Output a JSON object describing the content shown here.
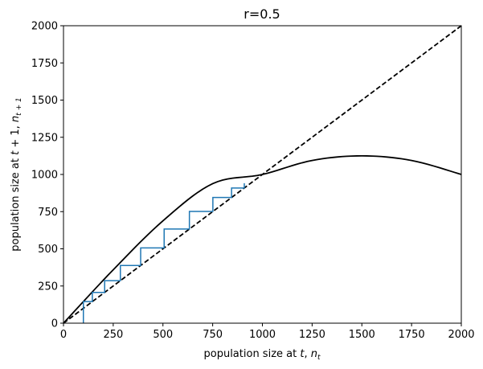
{
  "chart_data": {
    "type": "line",
    "title": "r=0.5",
    "xlabel": "population size at t, n_t",
    "ylabel": "population size at t + 1, n_{t+1}",
    "xlim": [
      0,
      2000
    ],
    "ylim": [
      0,
      2000
    ],
    "xticks": [
      "0",
      "250",
      "500",
      "750",
      "1000",
      "1250",
      "1500",
      "1750",
      "2000"
    ],
    "yticks": [
      "0",
      "250",
      "500",
      "750",
      "1000",
      "1250",
      "1500",
      "1750",
      "2000"
    ],
    "grid": false,
    "colors": {
      "curve": "#000000",
      "diagonal": "#000000",
      "cobweb": "#1f77b4"
    },
    "series": [
      {
        "style": "solid",
        "color": "#000000",
        "points": [
          [
            0,
            0
          ],
          [
            250,
            359
          ],
          [
            500,
            688
          ],
          [
            750,
            938
          ],
          [
            1000,
            1000
          ],
          [
            1250,
            1094
          ],
          [
            1500,
            1125
          ],
          [
            1750,
            1094
          ],
          [
            2000,
            1000
          ]
        ]
      },
      {
        "style": "dashed",
        "color": "#000000",
        "points": [
          [
            0,
            0
          ],
          [
            2000,
            2000
          ]
        ]
      },
      {
        "style": "step",
        "color": "#1f77b4",
        "points": [
          [
            100,
            0
          ],
          [
            100,
            145
          ],
          [
            145,
            145
          ],
          [
            145,
            207
          ],
          [
            207,
            207
          ],
          [
            207,
            286
          ],
          [
            286,
            286
          ],
          [
            286,
            388
          ],
          [
            388,
            388
          ],
          [
            388,
            506
          ],
          [
            506,
            506
          ],
          [
            506,
            633
          ],
          [
            633,
            633
          ],
          [
            633,
            751
          ],
          [
            751,
            751
          ],
          [
            751,
            845
          ],
          [
            845,
            845
          ],
          [
            845,
            909
          ],
          [
            909,
            909
          ],
          [
            909,
            941
          ]
        ]
      }
    ]
  }
}
